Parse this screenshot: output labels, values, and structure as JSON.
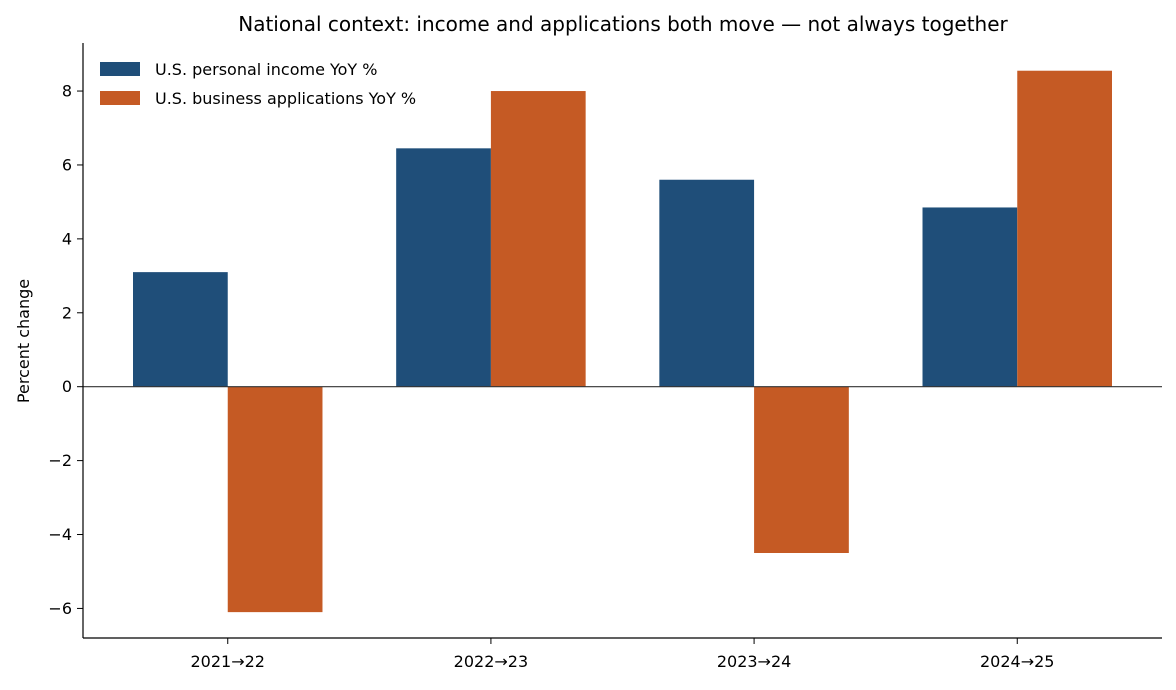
{
  "chart_data": {
    "type": "bar",
    "title": "National context: income and applications both move — not always together",
    "xlabel": "",
    "ylabel": "Percent change",
    "categories": [
      "2021→22",
      "2022→23",
      "2023→24",
      "2024→25"
    ],
    "series": [
      {
        "name": "U.S. personal income YoY %",
        "color": "#1f4e79",
        "values": [
          3.1,
          6.45,
          5.6,
          4.85
        ]
      },
      {
        "name": "U.S. business applications YoY %",
        "color": "#c55a24",
        "values": [
          -6.1,
          8.0,
          -4.5,
          8.55
        ]
      }
    ],
    "ylim": [
      -6.8,
      9.3
    ],
    "yticks": [
      -6,
      -4,
      -2,
      0,
      2,
      4,
      6,
      8
    ],
    "ytick_labels": [
      "−6",
      "−4",
      "−2",
      "0",
      "2",
      "4",
      "6",
      "8"
    ],
    "grid": false,
    "zero_line": true,
    "legend_position": "upper-left"
  }
}
